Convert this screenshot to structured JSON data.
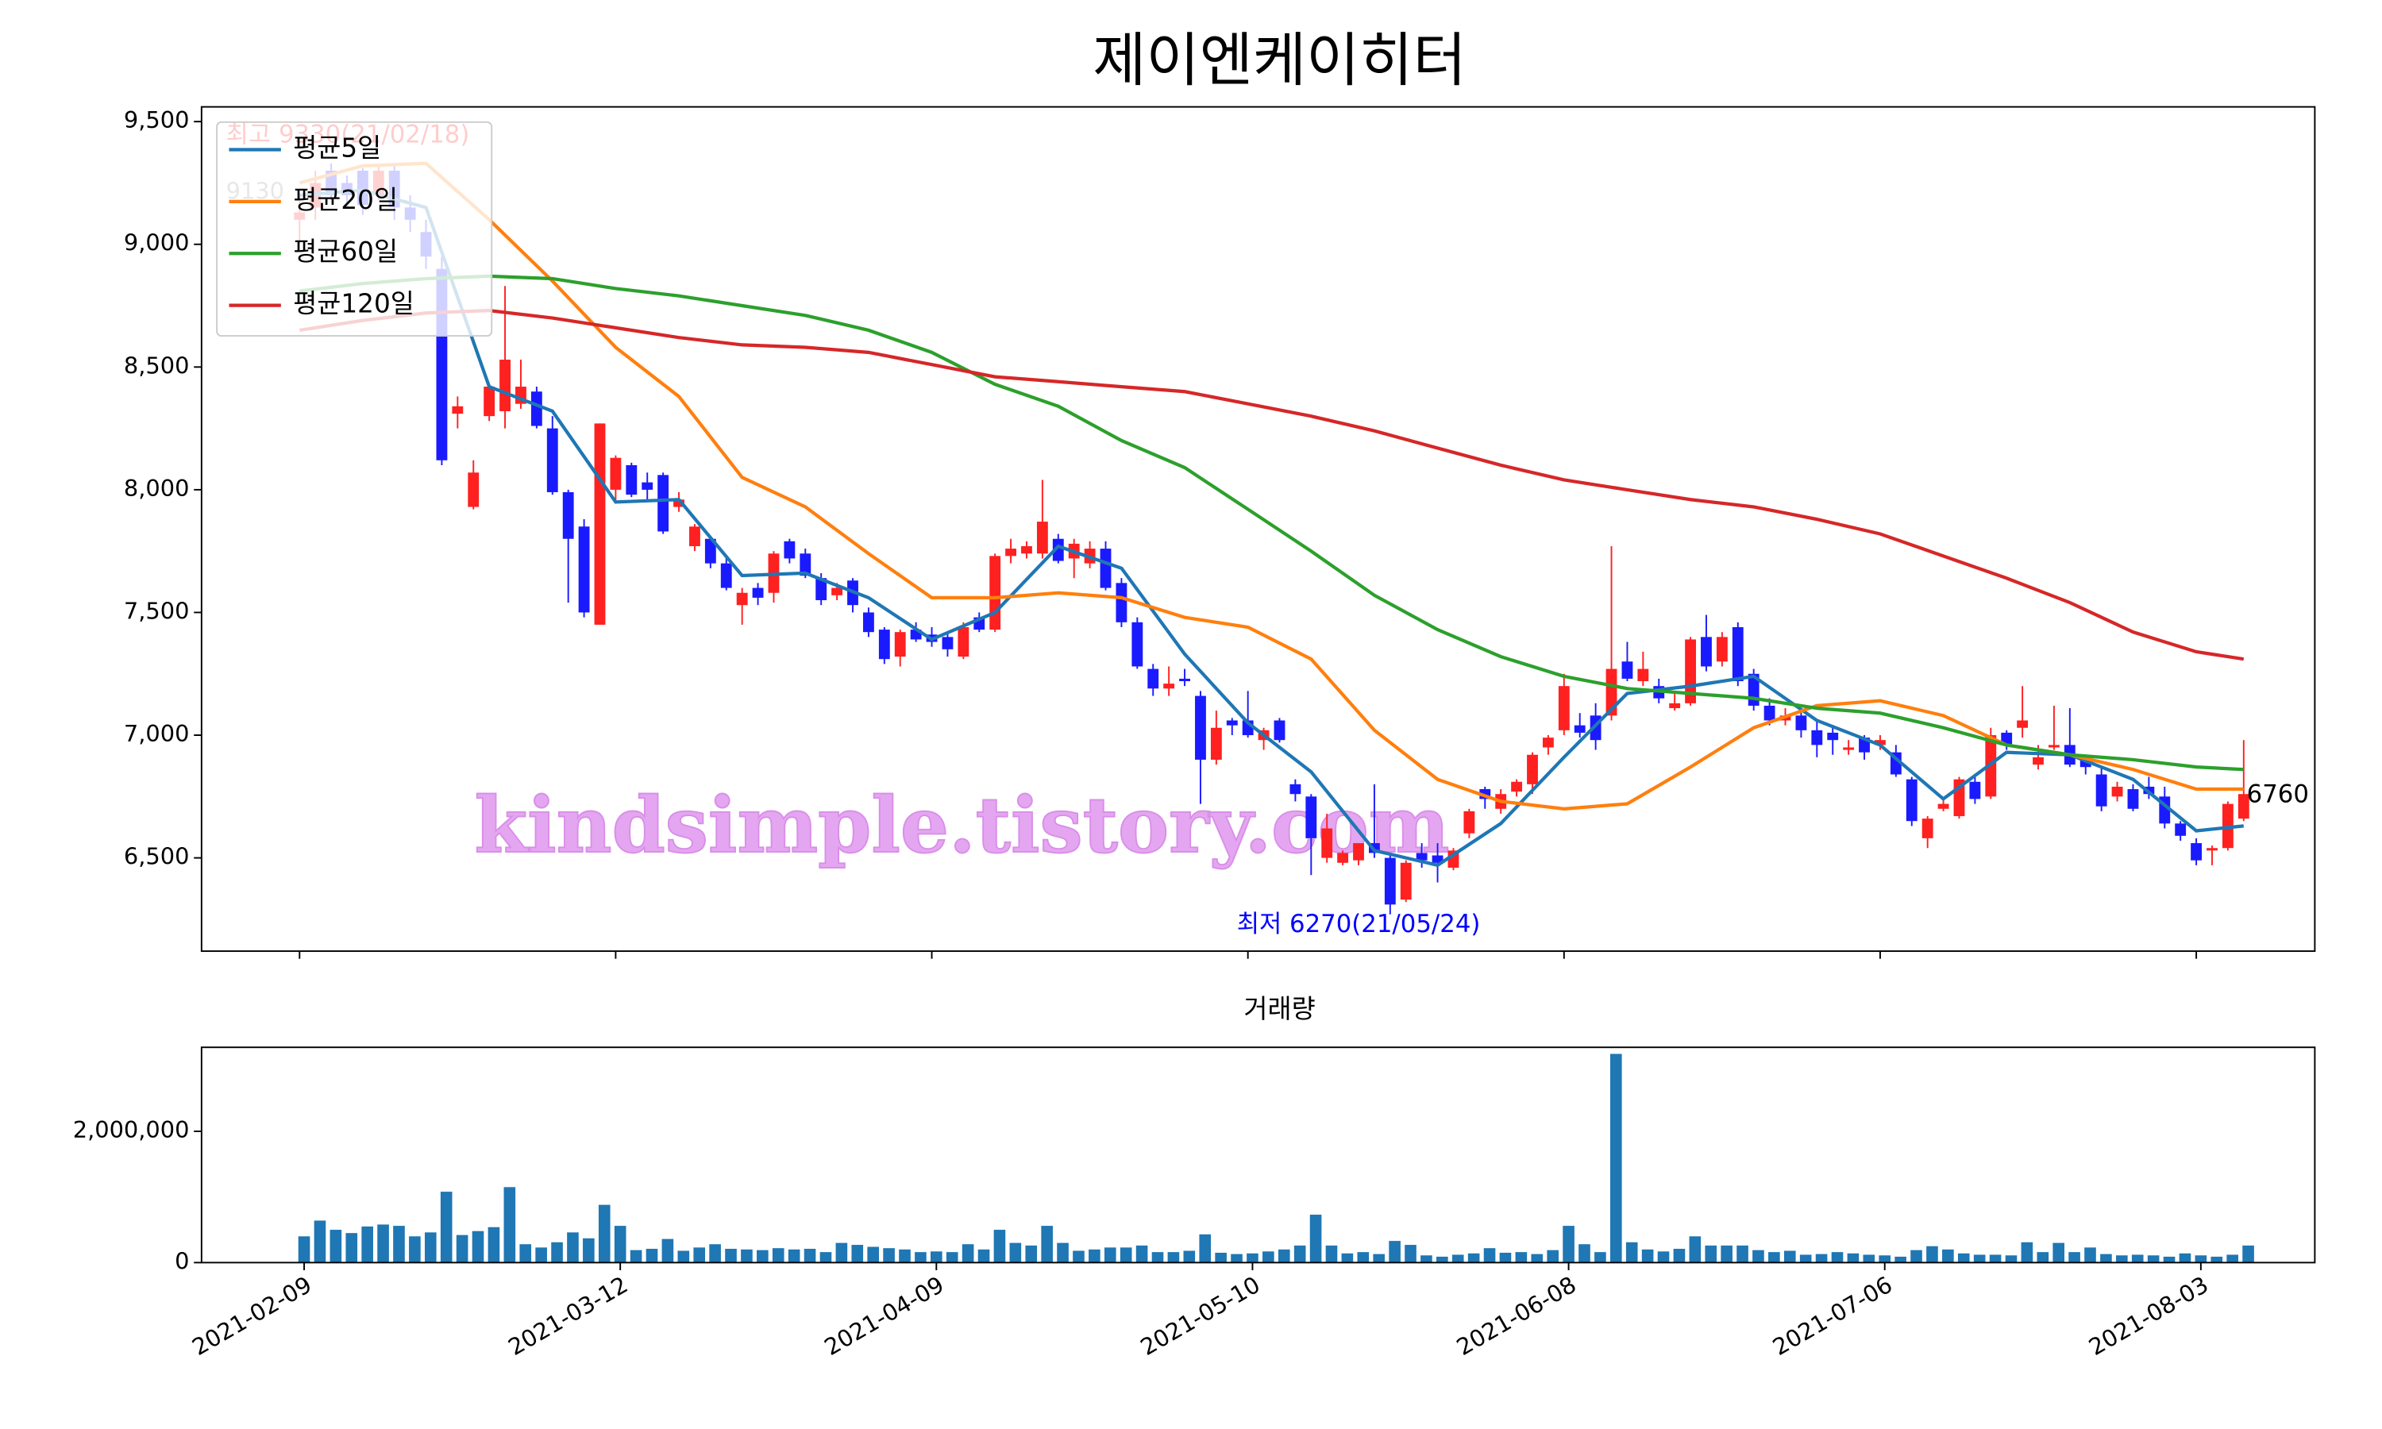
{
  "chart_data": [
    {
      "type": "candlestick",
      "title": "제이엔케이히터",
      "xlim": [
        -6.2,
        127.5
      ],
      "xticks": [
        0,
        20,
        40,
        60,
        80,
        100,
        120
      ],
      "ylim": [
        6120,
        9560
      ],
      "yticks": [
        {
          "value": 6500,
          "label": "6,500"
        },
        {
          "value": 7000,
          "label": "7,000"
        },
        {
          "value": 7500,
          "label": "7,500"
        },
        {
          "value": 8000,
          "label": "8,000"
        },
        {
          "value": 8500,
          "label": "8,500"
        },
        {
          "value": 9000,
          "label": "9,000"
        },
        {
          "value": 9500,
          "label": "9,500"
        }
      ],
      "up_color": "#ff2020",
      "down_color": "#1a1aff",
      "legend": "upper left",
      "watermark": "kindsimple.tistory.com",
      "annotations": [
        {
          "text": "최고 9330(21/02/18)",
          "color": "#ff0000"
        },
        {
          "text": "최저 6270(21/05/24)",
          "color": "#0000ff"
        }
      ],
      "ohlc": [
        [
          9100,
          9200,
          9000,
          9130
        ],
        [
          9150,
          9300,
          9100,
          9250
        ],
        [
          9300,
          9330,
          9180,
          9200
        ],
        [
          9250,
          9280,
          9150,
          9200
        ],
        [
          9300,
          9310,
          9120,
          9160
        ],
        [
          9200,
          9320,
          9180,
          9300
        ],
        [
          9300,
          9330,
          9100,
          9150
        ],
        [
          9150,
          9200,
          9050,
          9100
        ],
        [
          9050,
          9100,
          8900,
          8950
        ],
        [
          8900,
          8950,
          8100,
          8120
        ],
        [
          8310,
          8380,
          8250,
          8340
        ],
        [
          7930,
          8120,
          7920,
          8070
        ],
        [
          8300,
          8420,
          8280,
          8420
        ],
        [
          8320,
          8830,
          8250,
          8530
        ],
        [
          8350,
          8530,
          8330,
          8420
        ],
        [
          8400,
          8420,
          8250,
          8260
        ],
        [
          8250,
          8300,
          7980,
          7990
        ],
        [
          7990,
          8000,
          7540,
          7800
        ],
        [
          7850,
          7880,
          7480,
          7500
        ],
        [
          7450,
          8270,
          7450,
          8270
        ],
        [
          8000,
          8140,
          7950,
          8130
        ],
        [
          8100,
          8110,
          7970,
          7980
        ],
        [
          8030,
          8070,
          7960,
          8000
        ],
        [
          8060,
          8070,
          7820,
          7830
        ],
        [
          7930,
          7990,
          7910,
          7960
        ],
        [
          7770,
          7860,
          7750,
          7850
        ],
        [
          7800,
          7810,
          7680,
          7700
        ],
        [
          7700,
          7720,
          7590,
          7600
        ],
        [
          7530,
          7600,
          7450,
          7580
        ],
        [
          7600,
          7620,
          7530,
          7560
        ],
        [
          7580,
          7750,
          7540,
          7740
        ],
        [
          7790,
          7800,
          7700,
          7720
        ],
        [
          7740,
          7760,
          7640,
          7650
        ],
        [
          7640,
          7660,
          7530,
          7550
        ],
        [
          7570,
          7620,
          7550,
          7600
        ],
        [
          7630,
          7640,
          7500,
          7530
        ],
        [
          7500,
          7520,
          7400,
          7420
        ],
        [
          7430,
          7440,
          7290,
          7310
        ],
        [
          7320,
          7430,
          7280,
          7420
        ],
        [
          7430,
          7460,
          7380,
          7390
        ],
        [
          7410,
          7440,
          7360,
          7380
        ],
        [
          7400,
          7420,
          7320,
          7350
        ],
        [
          7320,
          7460,
          7310,
          7440
        ],
        [
          7480,
          7500,
          7420,
          7430
        ],
        [
          7430,
          7740,
          7420,
          7730
        ],
        [
          7730,
          7800,
          7700,
          7760
        ],
        [
          7740,
          7790,
          7720,
          7770
        ],
        [
          7740,
          8040,
          7720,
          7870
        ],
        [
          7800,
          7820,
          7700,
          7710
        ],
        [
          7720,
          7800,
          7640,
          7780
        ],
        [
          7700,
          7790,
          7680,
          7760
        ],
        [
          7760,
          7790,
          7590,
          7600
        ],
        [
          7620,
          7640,
          7440,
          7460
        ],
        [
          7460,
          7480,
          7270,
          7280
        ],
        [
          7270,
          7290,
          7160,
          7190
        ],
        [
          7190,
          7280,
          7160,
          7210
        ],
        [
          7230,
          7270,
          7200,
          7220
        ],
        [
          7160,
          7180,
          6720,
          6900
        ],
        [
          6900,
          7100,
          6880,
          7030
        ],
        [
          7060,
          7070,
          7000,
          7040
        ],
        [
          7060,
          7180,
          6990,
          7000
        ],
        [
          6980,
          7030,
          6940,
          7020
        ],
        [
          7060,
          7070,
          6970,
          6980
        ],
        [
          6800,
          6820,
          6730,
          6760
        ],
        [
          6750,
          6760,
          6430,
          6580
        ],
        [
          6500,
          6680,
          6480,
          6620
        ],
        [
          6480,
          6530,
          6470,
          6520
        ],
        [
          6490,
          6560,
          6470,
          6560
        ],
        [
          6560,
          6800,
          6500,
          6520
        ],
        [
          6500,
          6510,
          6270,
          6310
        ],
        [
          6330,
          6490,
          6320,
          6480
        ],
        [
          6520,
          6560,
          6460,
          6490
        ],
        [
          6510,
          6560,
          6400,
          6480
        ],
        [
          6460,
          6540,
          6450,
          6530
        ],
        [
          6600,
          6700,
          6580,
          6690
        ],
        [
          6780,
          6790,
          6700,
          6740
        ],
        [
          6700,
          6780,
          6680,
          6760
        ],
        [
          6770,
          6820,
          6750,
          6810
        ],
        [
          6800,
          6930,
          6760,
          6920
        ],
        [
          6950,
          7000,
          6920,
          6990
        ],
        [
          7020,
          7250,
          7000,
          7200
        ],
        [
          7040,
          7090,
          6990,
          7010
        ],
        [
          7080,
          7130,
          6940,
          6980
        ],
        [
          7080,
          7770,
          7060,
          7270
        ],
        [
          7300,
          7380,
          7220,
          7230
        ],
        [
          7220,
          7340,
          7200,
          7270
        ],
        [
          7200,
          7230,
          7130,
          7150
        ],
        [
          7110,
          7180,
          7100,
          7130
        ],
        [
          7130,
          7400,
          7120,
          7390
        ],
        [
          7400,
          7490,
          7260,
          7280
        ],
        [
          7300,
          7420,
          7280,
          7400
        ],
        [
          7440,
          7460,
          7200,
          7220
        ],
        [
          7250,
          7270,
          7100,
          7120
        ],
        [
          7120,
          7150,
          7040,
          7060
        ],
        [
          7060,
          7110,
          7040,
          7080
        ],
        [
          7080,
          7100,
          6990,
          7020
        ],
        [
          7020,
          7060,
          6910,
          6960
        ],
        [
          7010,
          7040,
          6920,
          6980
        ],
        [
          6940,
          6980,
          6920,
          6950
        ],
        [
          6990,
          7000,
          6900,
          6930
        ],
        [
          6960,
          7000,
          6940,
          6980
        ],
        [
          6930,
          6960,
          6830,
          6840
        ],
        [
          6820,
          6830,
          6630,
          6650
        ],
        [
          6580,
          6670,
          6540,
          6660
        ],
        [
          6700,
          6740,
          6690,
          6720
        ],
        [
          6670,
          6830,
          6660,
          6820
        ],
        [
          6810,
          6830,
          6720,
          6740
        ],
        [
          6750,
          7030,
          6740,
          7000
        ],
        [
          7010,
          7020,
          6940,
          6960
        ],
        [
          7030,
          7200,
          6990,
          7060
        ],
        [
          6880,
          6960,
          6860,
          6910
        ],
        [
          6950,
          7120,
          6940,
          6960
        ],
        [
          6960,
          7110,
          6870,
          6880
        ],
        [
          6900,
          6920,
          6840,
          6870
        ],
        [
          6840,
          6870,
          6690,
          6710
        ],
        [
          6750,
          6810,
          6730,
          6790
        ],
        [
          6780,
          6800,
          6690,
          6700
        ],
        [
          6790,
          6830,
          6740,
          6760
        ],
        [
          6750,
          6790,
          6620,
          6640
        ],
        [
          6640,
          6650,
          6570,
          6590
        ],
        [
          6560,
          6580,
          6470,
          6490
        ],
        [
          6530,
          6550,
          6470,
          6540
        ],
        [
          6540,
          6730,
          6530,
          6720
        ],
        [
          6660,
          6980,
          6650,
          6760
        ]
      ],
      "ma_x": [
        0,
        4,
        8,
        12,
        16,
        20,
        24,
        28,
        32,
        36,
        40,
        44,
        48,
        52,
        56,
        60,
        64,
        68,
        72,
        76,
        80,
        84,
        88,
        92,
        96,
        100,
        104,
        108,
        112,
        116,
        120,
        123
      ],
      "series": [
        {
          "name": "평균5일",
          "color": "#1f77b4",
          "values": [
            9200,
            9220,
            9150,
            8420,
            8320,
            7950,
            7960,
            7650,
            7660,
            7560,
            7390,
            7500,
            7770,
            7680,
            7330,
            7050,
            6850,
            6530,
            6470,
            6640,
            6910,
            7170,
            7200,
            7240,
            7060,
            6960,
            6740,
            6930,
            6920,
            6820,
            6610,
            6630
          ]
        },
        {
          "name": "평균20일",
          "color": "#ff7f0e",
          "values": [
            9250,
            9320,
            9330,
            9100,
            8850,
            8580,
            8380,
            8050,
            7930,
            7740,
            7560,
            7560,
            7580,
            7560,
            7480,
            7440,
            7310,
            7020,
            6820,
            6730,
            6700,
            6720,
            6870,
            7030,
            7120,
            7140,
            7080,
            6960,
            6920,
            6860,
            6780,
            6780
          ]
        },
        {
          "name": "평균60일",
          "color": "#2ca02c",
          "values": [
            8810,
            8840,
            8860,
            8870,
            8860,
            8820,
            8790,
            8750,
            8710,
            8650,
            8560,
            8430,
            8340,
            8200,
            8090,
            7920,
            7750,
            7570,
            7430,
            7320,
            7240,
            7190,
            7170,
            7150,
            7110,
            7090,
            7030,
            6960,
            6920,
            6900,
            6870,
            6860
          ]
        },
        {
          "name": "평균120일",
          "color": "#d62728",
          "values": [
            8650,
            8690,
            8720,
            8730,
            8700,
            8660,
            8620,
            8590,
            8580,
            8560,
            8510,
            8460,
            8440,
            8420,
            8400,
            8350,
            8300,
            8240,
            8170,
            8100,
            8040,
            8000,
            7960,
            7930,
            7880,
            7820,
            7730,
            7640,
            7540,
            7420,
            7340,
            7310
          ]
        }
      ]
    },
    {
      "type": "bar",
      "title": "거래량",
      "color": "#1f77b4",
      "xlim": [
        -6.2,
        127.5
      ],
      "xticks": [
        {
          "value": 0,
          "label": "2021-02-09"
        },
        {
          "value": 20,
          "label": "2021-03-12"
        },
        {
          "value": 40,
          "label": "2021-04-09"
        },
        {
          "value": 60,
          "label": "2021-05-10"
        },
        {
          "value": 80,
          "label": "2021-06-08"
        },
        {
          "value": 100,
          "label": "2021-07-06"
        },
        {
          "value": 120,
          "label": "2021-08-03"
        }
      ],
      "ylim": [
        0,
        3280000
      ],
      "yticks": [
        0,
        {
          "value": 2000000,
          "label": "2,000,000"
        }
      ],
      "values": [
        400000,
        640000,
        500000,
        450000,
        550000,
        580000,
        560000,
        400000,
        460000,
        1080000,
        420000,
        480000,
        540000,
        1150000,
        280000,
        230000,
        310000,
        460000,
        370000,
        880000,
        560000,
        190000,
        210000,
        360000,
        180000,
        230000,
        280000,
        210000,
        200000,
        190000,
        220000,
        200000,
        210000,
        160000,
        300000,
        270000,
        240000,
        220000,
        200000,
        160000,
        170000,
        160000,
        280000,
        200000,
        500000,
        300000,
        260000,
        560000,
        300000,
        180000,
        200000,
        230000,
        230000,
        260000,
        160000,
        160000,
        180000,
        430000,
        150000,
        130000,
        140000,
        170000,
        200000,
        260000,
        730000,
        260000,
        140000,
        160000,
        130000,
        330000,
        270000,
        110000,
        90000,
        120000,
        140000,
        220000,
        150000,
        160000,
        130000,
        190000,
        560000,
        280000,
        160000,
        3180000,
        310000,
        200000,
        170000,
        210000,
        400000,
        260000,
        260000,
        260000,
        190000,
        160000,
        180000,
        120000,
        130000,
        160000,
        140000,
        120000,
        110000,
        90000,
        190000,
        250000,
        200000,
        140000,
        120000,
        120000,
        110000,
        310000,
        160000,
        300000,
        160000,
        230000,
        130000,
        110000,
        120000,
        110000,
        90000,
        140000,
        110000,
        90000,
        120000,
        260000
      ]
    }
  ]
}
